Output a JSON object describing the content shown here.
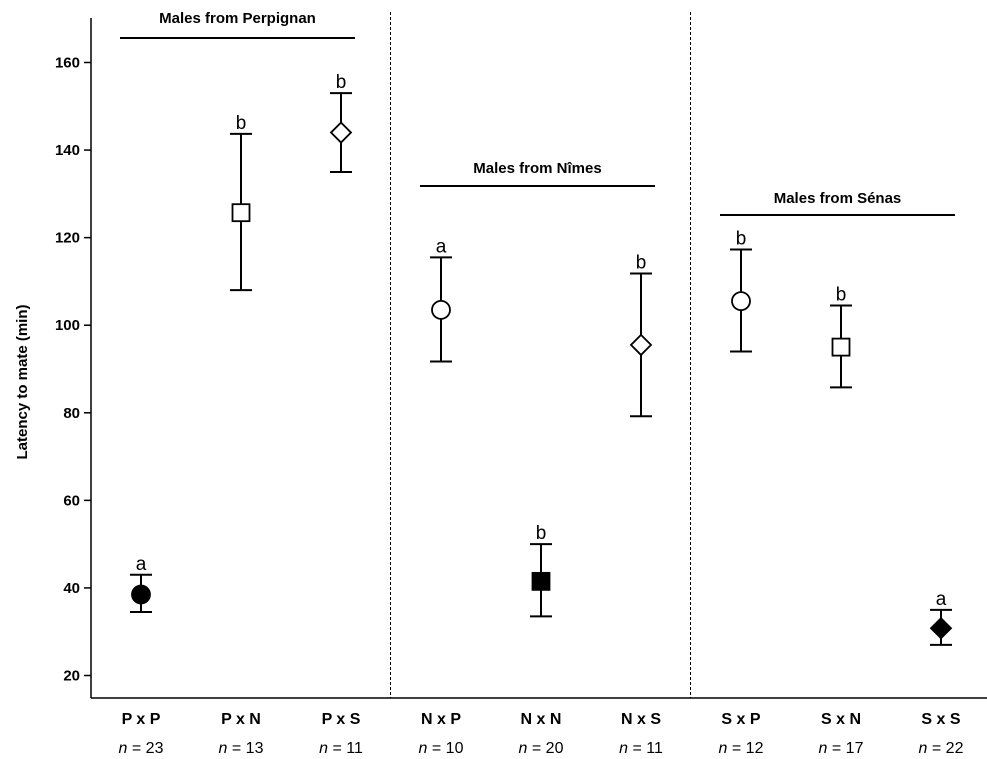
{
  "chart_data": {
    "type": "scatter",
    "ylabel": "Latency to mate (min)",
    "ylim": [
      15,
      170
    ],
    "yticks": [
      20,
      40,
      60,
      80,
      100,
      120,
      140,
      160
    ],
    "grid": false,
    "groups": [
      {
        "title": "Males from Perpignan",
        "category_span": [
          0,
          2
        ]
      },
      {
        "title": "Males from Nîmes",
        "category_span": [
          3,
          5
        ]
      },
      {
        "title": "Males from Sénas",
        "category_span": [
          6,
          8
        ]
      }
    ],
    "points": [
      {
        "category": "P x P",
        "n_prefix": "n",
        "n_text": " = 23",
        "mean": 38.5,
        "lower": 34.5,
        "upper": 43,
        "letter": "a",
        "marker": "circle",
        "filled": true
      },
      {
        "category": "P x N",
        "n_prefix": "n",
        "n_text": " = 13",
        "mean": 125.7,
        "lower": 108,
        "upper": 143.7,
        "letter": "b",
        "marker": "square",
        "filled": false
      },
      {
        "category": "P x S",
        "n_prefix": "n",
        "n_text": " = 11",
        "mean": 144,
        "lower": 135,
        "upper": 153,
        "letter": "b",
        "marker": "diamond",
        "filled": false
      },
      {
        "category": "N x P",
        "n_prefix": "n",
        "n_text": " = 10",
        "mean": 103.5,
        "lower": 91.7,
        "upper": 115.5,
        "letter": "a",
        "marker": "circle",
        "filled": false
      },
      {
        "category": "N x N",
        "n_prefix": "n",
        "n_text": " = 20",
        "mean": 41.5,
        "lower": 33.5,
        "upper": 50,
        "letter": "b",
        "marker": "square",
        "filled": true
      },
      {
        "category": "N x S",
        "n_prefix": "n",
        "n_text": " = 11",
        "mean": 95.5,
        "lower": 79.2,
        "upper": 111.8,
        "letter": "b",
        "marker": "diamond",
        "filled": false
      },
      {
        "category": "S x P",
        "n_prefix": "n",
        "n_text": " = 12",
        "mean": 105.5,
        "lower": 94,
        "upper": 117.3,
        "letter": "b",
        "marker": "circle",
        "filled": false
      },
      {
        "category": "S x N",
        "n_prefix": "n",
        "n_text": " = 17",
        "mean": 95,
        "lower": 85.8,
        "upper": 104.5,
        "letter": "b",
        "marker": "square",
        "filled": false
      },
      {
        "category": "S x S",
        "n_prefix": "n",
        "n_text": " = 22",
        "mean": 30.8,
        "lower": 27,
        "upper": 35,
        "letter": "a",
        "marker": "diamond",
        "filled": true
      }
    ]
  }
}
